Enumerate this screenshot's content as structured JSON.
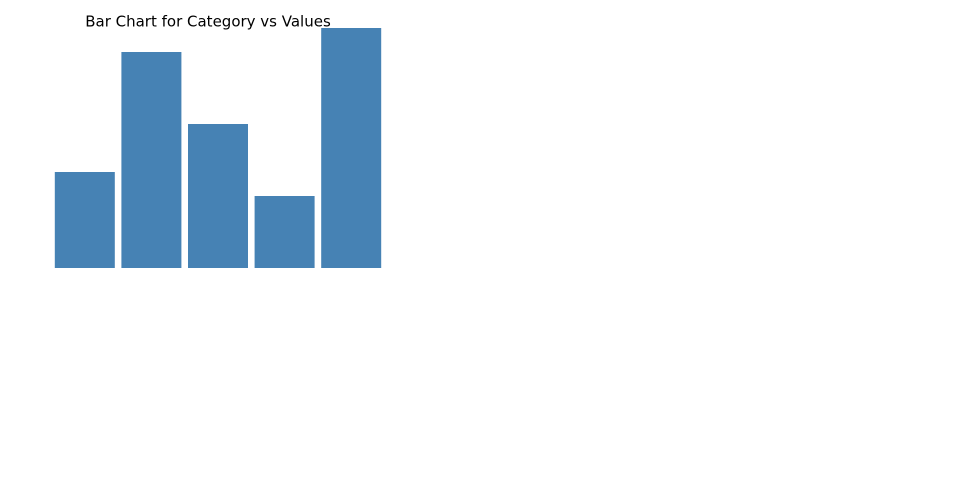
{
  "chart_data": {
    "type": "bar",
    "title": "Bar Chart for Category vs Values",
    "categories": [
      null,
      null,
      null,
      null,
      null
    ],
    "values": [
      4,
      9,
      6,
      3,
      10
    ],
    "color": "#4682b4",
    "ylim": [
      0,
      10
    ]
  }
}
